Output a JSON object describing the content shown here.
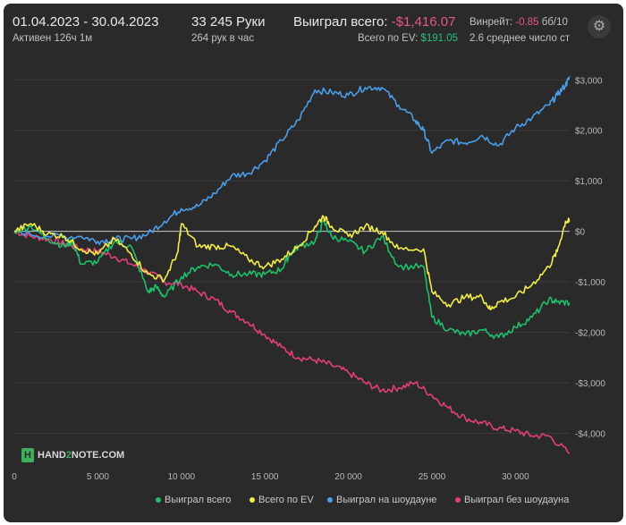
{
  "header": {
    "date_range": "01.04.2023 - 30.04.2023",
    "active": "Активен 126ч 1м",
    "hands": "33 245 Руки",
    "hands_per_hour": "264 рук в час",
    "won_total_label": "Выиграл всего:",
    "won_total_value": "-$1,416.07",
    "winrate_label": "Винрейт:",
    "winrate_value": "-0.85",
    "winrate_unit": "бб/10",
    "ev_label": "Всего по EV:",
    "ev_value": "$191.05",
    "avg_players": "2.6 среднее число ст"
  },
  "settings_icon": "gear-icon",
  "logo": {
    "text_a": "HAND",
    "text_b": "2",
    "text_c": "NOTE.COM"
  },
  "colors": {
    "green": "#1fbf6a",
    "yellow": "#f2ec4a",
    "blue": "#4a9de8",
    "pink": "#e23f78",
    "zero": "#c8c8c8",
    "grid": "#3a3a3a"
  },
  "chart_data": {
    "type": "line",
    "xlim": [
      0,
      33245
    ],
    "ylim": [
      -4700,
      3200
    ],
    "x_ticks": [
      0,
      5000,
      10000,
      15000,
      20000,
      25000,
      30000
    ],
    "x_tick_labels": [
      "0",
      "5 000",
      "10 000",
      "15 000",
      "20 000",
      "25 000",
      "30 000"
    ],
    "y_ticks": [
      3000,
      2000,
      1000,
      0,
      -1000,
      -2000,
      -3000,
      -4000
    ],
    "y_tick_labels": [
      "$3,000",
      "$2,000",
      "$1,000",
      "$0",
      "-$1,000",
      "-$2,000",
      "-$3,000",
      "-$4,000"
    ],
    "grid": "horizontal",
    "legend_position": "bottom",
    "series": [
      {
        "name": "Выиграл всего",
        "color_key": "green",
        "points": [
          [
            0,
            0
          ],
          [
            1000,
            100
          ],
          [
            2000,
            -150
          ],
          [
            3000,
            -300
          ],
          [
            3500,
            -200
          ],
          [
            4000,
            -650
          ],
          [
            5000,
            -600
          ],
          [
            6000,
            -200
          ],
          [
            7000,
            -300
          ],
          [
            8000,
            -1200
          ],
          [
            8500,
            -1100
          ],
          [
            9000,
            -1300
          ],
          [
            10000,
            -900
          ],
          [
            11000,
            -700
          ],
          [
            12000,
            -650
          ],
          [
            13000,
            -850
          ],
          [
            14000,
            -850
          ],
          [
            15000,
            -850
          ],
          [
            16000,
            -750
          ],
          [
            16500,
            -450
          ],
          [
            17000,
            -300
          ],
          [
            18000,
            -200
          ],
          [
            18500,
            200
          ],
          [
            19000,
            -100
          ],
          [
            20000,
            -200
          ],
          [
            21000,
            -400
          ],
          [
            22000,
            -100
          ],
          [
            23000,
            -700
          ],
          [
            24500,
            -700
          ],
          [
            25000,
            -1700
          ],
          [
            26000,
            -1950
          ],
          [
            27000,
            -2050
          ],
          [
            28000,
            -1950
          ],
          [
            29000,
            -2100
          ],
          [
            30000,
            -1900
          ],
          [
            31000,
            -1700
          ],
          [
            32000,
            -1350
          ],
          [
            32500,
            -1400
          ],
          [
            33245,
            -1416
          ]
        ]
      },
      {
        "name": "Всего по EV",
        "color_key": "yellow",
        "points": [
          [
            0,
            0
          ],
          [
            1000,
            150
          ],
          [
            2000,
            -50
          ],
          [
            3000,
            -100
          ],
          [
            4000,
            -350
          ],
          [
            5000,
            -450
          ],
          [
            6000,
            -150
          ],
          [
            7000,
            -450
          ],
          [
            8000,
            -850
          ],
          [
            9000,
            -950
          ],
          [
            9800,
            -400
          ],
          [
            10000,
            150
          ],
          [
            11000,
            -300
          ],
          [
            12000,
            -300
          ],
          [
            13000,
            -300
          ],
          [
            14000,
            -550
          ],
          [
            15000,
            -700
          ],
          [
            16000,
            -550
          ],
          [
            17000,
            -300
          ],
          [
            18000,
            100
          ],
          [
            18500,
            300
          ],
          [
            19000,
            100
          ],
          [
            20000,
            -100
          ],
          [
            21000,
            100
          ],
          [
            22000,
            0
          ],
          [
            23000,
            -350
          ],
          [
            24500,
            -350
          ],
          [
            25000,
            -1200
          ],
          [
            26000,
            -1450
          ],
          [
            27000,
            -1300
          ],
          [
            28000,
            -1300
          ],
          [
            28500,
            -1550
          ],
          [
            29000,
            -1400
          ],
          [
            30000,
            -1300
          ],
          [
            31000,
            -1050
          ],
          [
            32000,
            -700
          ],
          [
            32500,
            -400
          ],
          [
            33000,
            200
          ],
          [
            33245,
            191
          ]
        ]
      },
      {
        "name": "Выиграл на шоудауне",
        "color_key": "blue",
        "points": [
          [
            0,
            0
          ],
          [
            2000,
            -100
          ],
          [
            4000,
            -100
          ],
          [
            5000,
            -200
          ],
          [
            6000,
            -150
          ],
          [
            7000,
            -150
          ],
          [
            8000,
            -50
          ],
          [
            9000,
            200
          ],
          [
            10000,
            450
          ],
          [
            11000,
            500
          ],
          [
            12000,
            750
          ],
          [
            13000,
            1100
          ],
          [
            14000,
            1150
          ],
          [
            15000,
            1400
          ],
          [
            16000,
            1800
          ],
          [
            17000,
            2200
          ],
          [
            18000,
            2800
          ],
          [
            19000,
            2750
          ],
          [
            20000,
            2700
          ],
          [
            21000,
            2850
          ],
          [
            22000,
            2850
          ],
          [
            23000,
            2500
          ],
          [
            24000,
            2200
          ],
          [
            24500,
            2000
          ],
          [
            25000,
            1550
          ],
          [
            26000,
            1800
          ],
          [
            27000,
            1750
          ],
          [
            28000,
            1900
          ],
          [
            29000,
            1700
          ],
          [
            30000,
            2050
          ],
          [
            31000,
            2250
          ],
          [
            32000,
            2500
          ],
          [
            32500,
            2700
          ],
          [
            33000,
            2900
          ],
          [
            33245,
            3050
          ]
        ]
      },
      {
        "name": "Выиграл без шоудауна",
        "color_key": "pink",
        "points": [
          [
            0,
            0
          ],
          [
            1000,
            -100
          ],
          [
            2000,
            -150
          ],
          [
            3000,
            -250
          ],
          [
            4000,
            -350
          ],
          [
            5000,
            -400
          ],
          [
            6000,
            -500
          ],
          [
            7000,
            -650
          ],
          [
            8000,
            -800
          ],
          [
            9000,
            -1000
          ],
          [
            10000,
            -1050
          ],
          [
            11000,
            -1200
          ],
          [
            12000,
            -1350
          ],
          [
            13000,
            -1600
          ],
          [
            14000,
            -1800
          ],
          [
            15000,
            -2050
          ],
          [
            16000,
            -2300
          ],
          [
            17000,
            -2500
          ],
          [
            18000,
            -2550
          ],
          [
            19000,
            -2650
          ],
          [
            20000,
            -2800
          ],
          [
            21000,
            -3000
          ],
          [
            22000,
            -3150
          ],
          [
            23000,
            -3100
          ],
          [
            24000,
            -3000
          ],
          [
            25000,
            -3250
          ],
          [
            26000,
            -3500
          ],
          [
            27000,
            -3700
          ],
          [
            28000,
            -3800
          ],
          [
            29000,
            -3900
          ],
          [
            30000,
            -3950
          ],
          [
            31000,
            -4050
          ],
          [
            32000,
            -4050
          ],
          [
            33245,
            -4400
          ]
        ]
      }
    ]
  }
}
